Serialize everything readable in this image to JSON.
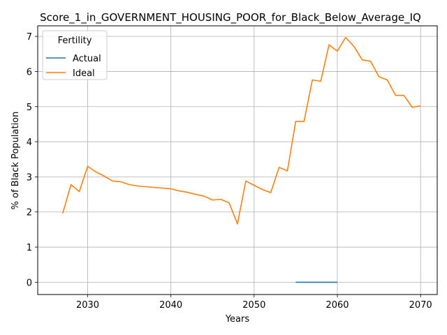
{
  "chart_data": {
    "type": "line",
    "title": "Score_1_in_GOVERNMENT_HOUSING_POOR_for_Black_Below_Average_IQ",
    "xlabel": "Years",
    "ylabel": "% of Black Population",
    "xlim": [
      2024,
      2072
    ],
    "ylim": [
      -0.35,
      7.3
    ],
    "xticks": [
      2030,
      2040,
      2050,
      2060,
      2070
    ],
    "yticks": [
      0,
      1,
      2,
      3,
      4,
      5,
      6,
      7
    ],
    "grid": true,
    "legend": {
      "title": "Fertility",
      "placement": "upper-left"
    },
    "series": [
      {
        "name": "Actual",
        "color": "#1f77b4",
        "x": [
          2055,
          2056,
          2057,
          2058,
          2059,
          2060
        ],
        "y": [
          0.0,
          0.0,
          0.0,
          0.0,
          0.0,
          0.0
        ]
      },
      {
        "name": "Ideal",
        "color": "#ff7f0e",
        "x": [
          2027,
          2028,
          2029,
          2030,
          2031,
          2032,
          2033,
          2034,
          2035,
          2036,
          2037,
          2038,
          2039,
          2040,
          2041,
          2042,
          2043,
          2044,
          2045,
          2046,
          2047,
          2048,
          2049,
          2050,
          2051,
          2052,
          2053,
          2054,
          2055,
          2056,
          2057,
          2058,
          2059,
          2060,
          2061,
          2062,
          2063,
          2064,
          2065,
          2066,
          2067,
          2068,
          2069,
          2070
        ],
        "y": [
          1.96,
          2.78,
          2.58,
          3.3,
          3.14,
          3.02,
          2.88,
          2.86,
          2.78,
          2.74,
          2.72,
          2.7,
          2.68,
          2.66,
          2.6,
          2.56,
          2.5,
          2.45,
          2.34,
          2.36,
          2.26,
          1.66,
          2.88,
          2.76,
          2.64,
          2.55,
          3.27,
          3.17,
          4.58,
          4.58,
          5.76,
          5.72,
          6.76,
          6.58,
          6.97,
          6.71,
          6.33,
          6.29,
          5.85,
          5.76,
          5.32,
          5.32,
          4.98,
          5.02
        ]
      }
    ]
  }
}
